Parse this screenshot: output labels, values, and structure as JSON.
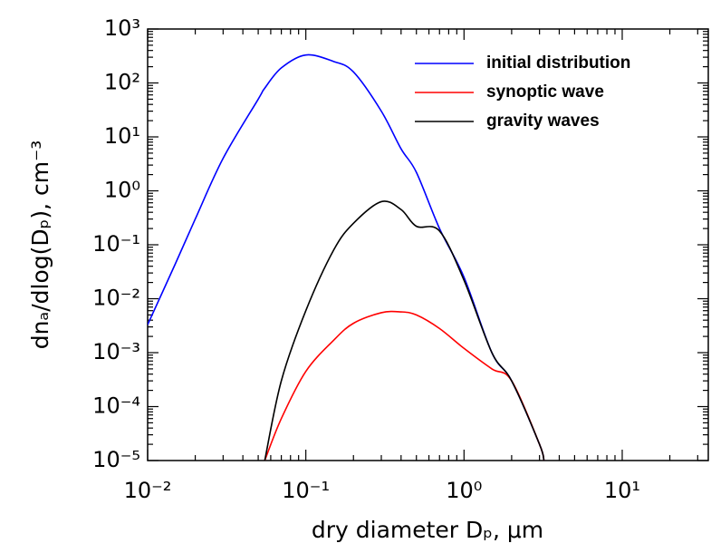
{
  "chart_data": {
    "type": "line",
    "xlabel": "dry diameter Dₚ, μm",
    "ylabel": "dnₐ/dlog(Dₚ), cm⁻³",
    "x": [
      0.01,
      0.015,
      0.02,
      0.03,
      0.05,
      0.055,
      0.07,
      0.1,
      0.15,
      0.2,
      0.3,
      0.4,
      0.5,
      0.7,
      1,
      1.5,
      2,
      3,
      3.2
    ],
    "series": [
      {
        "name": "initial distribution",
        "color": "#0000ff",
        "values": [
          0.0033,
          0.045,
          0.3,
          4,
          50,
          80,
          190,
          330,
          250,
          160,
          30,
          6,
          2.2,
          0.2,
          0.025,
          0.001,
          0.0003,
          2e-05,
          1e-05
        ]
      },
      {
        "name": "synoptic wave",
        "color": "#ff0000",
        "values": [
          null,
          null,
          null,
          null,
          null,
          1e-05,
          6e-05,
          0.00045,
          0.0017,
          0.0035,
          0.0055,
          0.0057,
          0.005,
          0.0028,
          0.0012,
          0.0005,
          0.0003,
          2e-05,
          1e-05
        ]
      },
      {
        "name": "gravity waves",
        "color": "#000000",
        "values": [
          null,
          null,
          null,
          null,
          null,
          1e-05,
          0.0003,
          0.006,
          0.08,
          0.25,
          0.63,
          0.45,
          0.22,
          0.18,
          0.022,
          0.001,
          0.0003,
          2e-05,
          1e-05
        ]
      }
    ],
    "xlim": [
      0.01,
      35
    ],
    "ylim": [
      1e-05,
      1000
    ],
    "xticks": [
      {
        "value": 0.01,
        "label": "10⁻²"
      },
      {
        "value": 0.1,
        "label": "10⁻¹"
      },
      {
        "value": 1,
        "label": "10⁰"
      },
      {
        "value": 10,
        "label": "10¹"
      }
    ],
    "yticks": [
      {
        "value": 1e-05,
        "label": "10⁻⁵"
      },
      {
        "value": 0.0001,
        "label": "10⁻⁴"
      },
      {
        "value": 0.001,
        "label": "10⁻³"
      },
      {
        "value": 0.01,
        "label": "10⁻²"
      },
      {
        "value": 0.1,
        "label": "10⁻¹"
      },
      {
        "value": 1,
        "label": "10⁰"
      },
      {
        "value": 10,
        "label": "10¹"
      },
      {
        "value": 100,
        "label": "10²"
      },
      {
        "value": 1000,
        "label": "10³"
      }
    ],
    "xscale": "log",
    "yscale": "log",
    "minor_ticks": true,
    "legend": "upper right"
  }
}
